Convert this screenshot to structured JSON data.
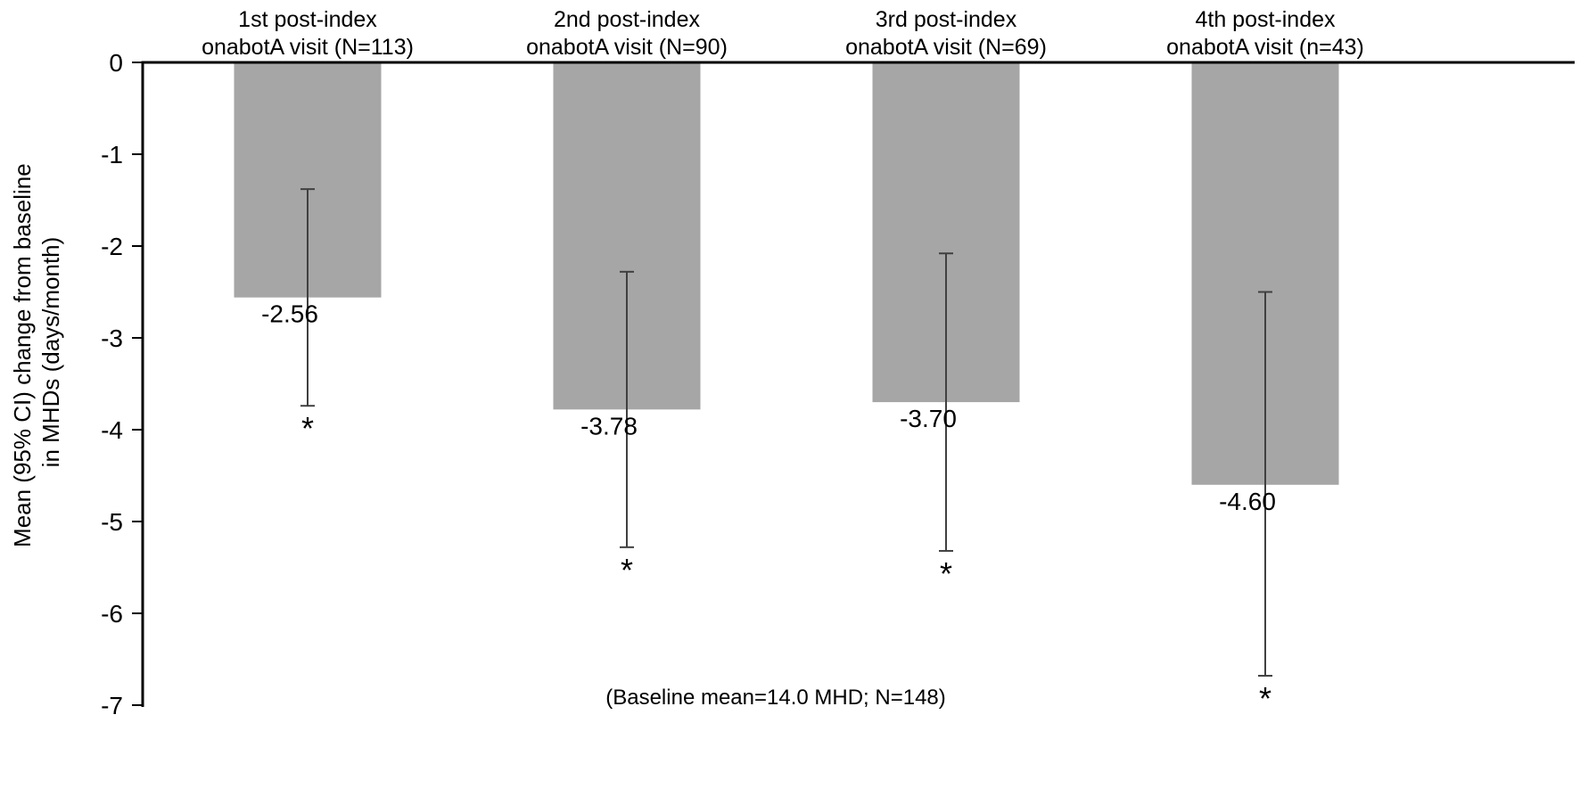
{
  "chart_data": {
    "type": "bar",
    "title": "",
    "xlabel": "",
    "ylabel": "Mean (95% CI) change from baseline in MHDs (days/month)",
    "ylabel_lines": [
      "Mean (95% CI) change from baseline",
      "in MHDs (days/month)"
    ],
    "ylim": [
      -7,
      0
    ],
    "y_ticks": [
      0,
      -1,
      -2,
      -3,
      -4,
      -5,
      -6,
      -7
    ],
    "grid": false,
    "legend": false,
    "background_color": "#ffffff",
    "bar_color": "#a6a6a6",
    "axis_color": "#000000",
    "error_bar_color": "#404040",
    "categories": [
      {
        "label": "1st post-index onabotA visit (N=113)",
        "line1": "1st post-index",
        "line2": "onabotA visit (N=113)"
      },
      {
        "label": "2nd post-index onabotA visit (N=90)",
        "line1": "2nd post-index",
        "line2": "onabotA visit (N=90)"
      },
      {
        "label": "3rd post-index onabotA visit (N=69)",
        "line1": "3rd post-index",
        "line2": "onabotA visit (N=69)"
      },
      {
        "label": "4th post-index onabotA visit (n=43)",
        "line1": "4th post-index",
        "line2": "onabotA visit (n=43)"
      }
    ],
    "series": [
      {
        "name": "Mean change from baseline in MHDs (days/month)",
        "values": [
          -2.56,
          -3.78,
          -3.7,
          -4.6
        ],
        "value_labels": [
          "-2.56",
          "-3.78",
          "-3.70",
          "-4.60"
        ],
        "ci_upper": [
          -1.38,
          -2.28,
          -2.08,
          -2.5
        ],
        "ci_lower": [
          -3.74,
          -5.28,
          -5.32,
          -6.68
        ],
        "significance": [
          "*",
          "*",
          "*",
          "*"
        ]
      }
    ],
    "annotation": "(Baseline mean=14.0 MHD; N=148)"
  }
}
